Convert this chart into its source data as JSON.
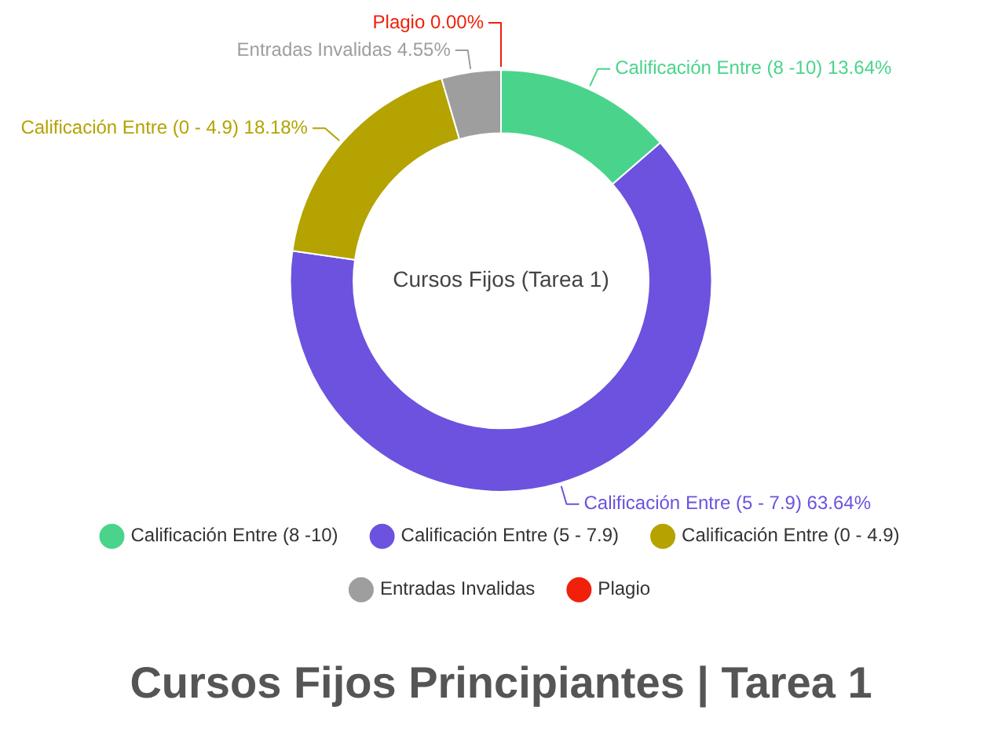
{
  "chart_data": {
    "type": "donut",
    "title": "Cursos Fijos Principiantes | Tarea 1",
    "categories": [
      "Calificación Entre (8 -10)",
      "Calificación Entre (5 - 7.9)",
      "Calificación Entre (0 - 4.9)",
      "Entradas Invalidas",
      "Plagio"
    ],
    "values": [
      13.64,
      63.64,
      18.18,
      4.55,
      0.0
    ],
    "colors": [
      "#4ad48b",
      "#6c52de",
      "#b4a300",
      "#9e9e9e",
      "#f0200a"
    ],
    "value_labels": [
      "Calificación Entre (8 -10) 13.64%",
      "Calificación Entre (5 - 7.9) 63.64%",
      "Calificación Entre (0 - 4.9) 18.18%",
      "Entradas Invalidas 4.55%",
      "Plagio 0.00%"
    ],
    "annotations": [
      "Cursos Fijos (Tarea 1)"
    ],
    "legend": "bottom"
  }
}
